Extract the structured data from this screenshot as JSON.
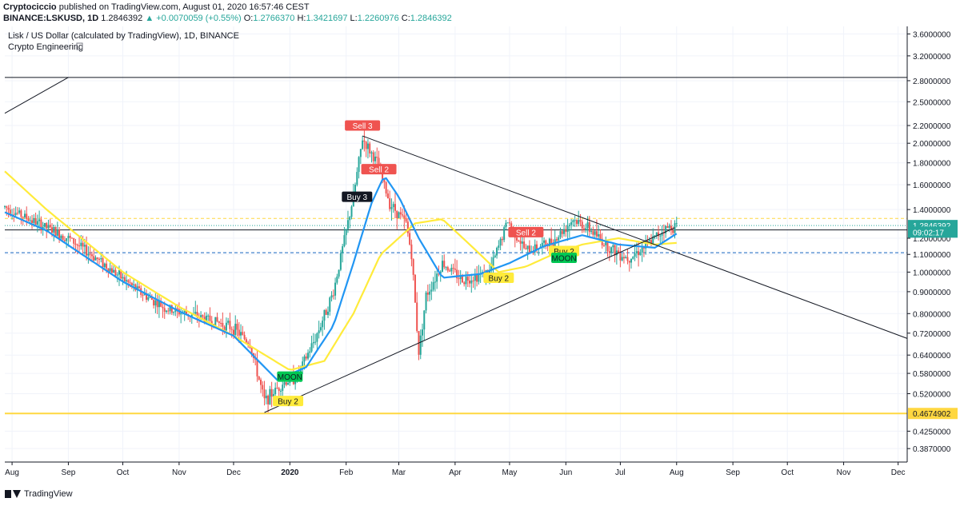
{
  "header": {
    "author": "Cryptociccio",
    "published": "published on TradingView.com, August 01, 2020 16:57:46 CEST",
    "symbol": "BINANCE:LSKUSD, 1D",
    "last": "1.2846392",
    "change": "▲ +0.0070059 (+0.55%)",
    "o_label": "O:",
    "o_value": "1.2766370",
    "h_label": "H:",
    "h_value": "1.3421697",
    "l_label": "L:",
    "l_value": "1.2260976",
    "c_label": "C:",
    "c_value": "1.2846392"
  },
  "legend": {
    "title": "Lisk / US Dollar (calculated by TradingView), 1D, BINANCE",
    "indicator": "Crypto Engineering",
    "indicator_icon": "settings-icon"
  },
  "footer": {
    "brand": "TradingView",
    "icon": "tradingview-logo-icon"
  },
  "colors": {
    "up": "#26a69a",
    "down": "#ef5350",
    "ma_fast": "#2196f3",
    "ma_slow": "#ffeb3b",
    "support": "#ffd740",
    "dashed_blue": "#1565c0",
    "dashed_yellow": "#ffd740"
  },
  "chart_data": {
    "type": "candlestick",
    "y_scale": "log",
    "ylim": [
      0.36,
      3.75
    ],
    "y_ticks": [
      "3.6000000",
      "3.2000000",
      "2.8000000",
      "2.5000000",
      "2.2000000",
      "2.0000000",
      "1.8000000",
      "1.6000000",
      "1.4000000",
      "1.2000000",
      "1.1000000",
      "1.0000000",
      "0.9000000",
      "0.8000000",
      "0.7200000",
      "0.6400000",
      "0.5800000",
      "0.5200000",
      "0.4250000",
      "0.3870000"
    ],
    "x_ticks": [
      {
        "label": "Aug",
        "date": "2019-08-01"
      },
      {
        "label": "Sep",
        "date": "2019-09-01"
      },
      {
        "label": "Oct",
        "date": "2019-10-01"
      },
      {
        "label": "Nov",
        "date": "2019-11-01"
      },
      {
        "label": "Dec",
        "date": "2019-12-01"
      },
      {
        "label": "2020",
        "date": "2020-01-01"
      },
      {
        "label": "Feb",
        "date": "2020-02-01"
      },
      {
        "label": "Mar",
        "date": "2020-03-01"
      },
      {
        "label": "Apr",
        "date": "2020-04-01"
      },
      {
        "label": "May",
        "date": "2020-05-01"
      },
      {
        "label": "Jun",
        "date": "2020-06-01"
      },
      {
        "label": "Jul",
        "date": "2020-07-01"
      },
      {
        "label": "Aug",
        "date": "2020-08-01"
      },
      {
        "label": "Sep",
        "date": "2020-09-01"
      },
      {
        "label": "Oct",
        "date": "2020-10-01"
      },
      {
        "label": "Nov",
        "date": "2020-11-01"
      },
      {
        "label": "Dec",
        "date": "2020-12-01"
      }
    ],
    "price_anchors": [
      {
        "date": "2019-07-28",
        "price": 1.42
      },
      {
        "date": "2019-08-15",
        "price": 1.3
      },
      {
        "date": "2019-09-01",
        "price": 1.2
      },
      {
        "date": "2019-09-20",
        "price": 1.05
      },
      {
        "date": "2019-10-10",
        "price": 0.9
      },
      {
        "date": "2019-10-25",
        "price": 0.82
      },
      {
        "date": "2019-11-05",
        "price": 0.8
      },
      {
        "date": "2019-11-20",
        "price": 0.77
      },
      {
        "date": "2019-12-01",
        "price": 0.74
      },
      {
        "date": "2019-12-10",
        "price": 0.68
      },
      {
        "date": "2019-12-18",
        "price": 0.5
      },
      {
        "date": "2019-12-28",
        "price": 0.55
      },
      {
        "date": "2020-01-05",
        "price": 0.57
      },
      {
        "date": "2020-01-15",
        "price": 0.7
      },
      {
        "date": "2020-01-25",
        "price": 0.9
      },
      {
        "date": "2020-02-05",
        "price": 1.5
      },
      {
        "date": "2020-02-10",
        "price": 2.05
      },
      {
        "date": "2020-02-18",
        "price": 1.8
      },
      {
        "date": "2020-02-25",
        "price": 1.45
      },
      {
        "date": "2020-03-05",
        "price": 1.3
      },
      {
        "date": "2020-03-08",
        "price": 1.1
      },
      {
        "date": "2020-03-12",
        "price": 0.65
      },
      {
        "date": "2020-03-16",
        "price": 0.88
      },
      {
        "date": "2020-03-25",
        "price": 1.05
      },
      {
        "date": "2020-04-05",
        "price": 0.96
      },
      {
        "date": "2020-04-20",
        "price": 1.0
      },
      {
        "date": "2020-04-30",
        "price": 1.32
      },
      {
        "date": "2020-05-10",
        "price": 1.12
      },
      {
        "date": "2020-05-25",
        "price": 1.18
      },
      {
        "date": "2020-06-05",
        "price": 1.33
      },
      {
        "date": "2020-06-15",
        "price": 1.25
      },
      {
        "date": "2020-06-25",
        "price": 1.14
      },
      {
        "date": "2020-07-05",
        "price": 1.08
      },
      {
        "date": "2020-07-15",
        "price": 1.15
      },
      {
        "date": "2020-07-25",
        "price": 1.26
      },
      {
        "date": "2020-08-01",
        "price": 1.2846
      }
    ],
    "ma_fast_anchors": [
      {
        "date": "2019-07-28",
        "price": 1.38
      },
      {
        "date": "2019-08-20",
        "price": 1.25
      },
      {
        "date": "2019-10-01",
        "price": 0.95
      },
      {
        "date": "2019-11-01",
        "price": 0.81
      },
      {
        "date": "2019-12-01",
        "price": 0.71
      },
      {
        "date": "2019-12-25",
        "price": 0.56
      },
      {
        "date": "2020-01-10",
        "price": 0.6
      },
      {
        "date": "2020-01-25",
        "price": 0.75
      },
      {
        "date": "2020-02-05",
        "price": 1.05
      },
      {
        "date": "2020-02-15",
        "price": 1.45
      },
      {
        "date": "2020-02-22",
        "price": 1.68
      },
      {
        "date": "2020-03-01",
        "price": 1.5
      },
      {
        "date": "2020-03-12",
        "price": 1.2
      },
      {
        "date": "2020-03-25",
        "price": 0.97
      },
      {
        "date": "2020-04-15",
        "price": 0.99
      },
      {
        "date": "2020-05-01",
        "price": 1.05
      },
      {
        "date": "2020-05-20",
        "price": 1.15
      },
      {
        "date": "2020-06-10",
        "price": 1.22
      },
      {
        "date": "2020-06-30",
        "price": 1.16
      },
      {
        "date": "2020-07-20",
        "price": 1.14
      },
      {
        "date": "2020-08-01",
        "price": 1.23
      }
    ],
    "ma_slow_anchors": [
      {
        "date": "2019-07-28",
        "price": 1.72
      },
      {
        "date": "2019-08-20",
        "price": 1.4
      },
      {
        "date": "2019-10-01",
        "price": 1.0
      },
      {
        "date": "2019-11-01",
        "price": 0.83
      },
      {
        "date": "2019-12-01",
        "price": 0.71
      },
      {
        "date": "2020-01-01",
        "price": 0.59
      },
      {
        "date": "2020-01-20",
        "price": 0.62
      },
      {
        "date": "2020-02-05",
        "price": 0.8
      },
      {
        "date": "2020-02-20",
        "price": 1.1
      },
      {
        "date": "2020-03-10",
        "price": 1.3
      },
      {
        "date": "2020-03-25",
        "price": 1.33
      },
      {
        "date": "2020-04-10",
        "price": 1.15
      },
      {
        "date": "2020-04-25",
        "price": 1.0
      },
      {
        "date": "2020-05-10",
        "price": 1.03
      },
      {
        "date": "2020-05-25",
        "price": 1.1
      },
      {
        "date": "2020-06-10",
        "price": 1.16
      },
      {
        "date": "2020-06-30",
        "price": 1.2
      },
      {
        "date": "2020-07-20",
        "price": 1.16
      },
      {
        "date": "2020-08-01",
        "price": 1.17
      }
    ],
    "h_lines": [
      {
        "name": "resistance",
        "price": 2.85,
        "color": "#131722",
        "dash": "solid"
      },
      {
        "name": "yellow-dashed",
        "price": 1.335,
        "color": "#ffd740",
        "dash": "dashed"
      },
      {
        "name": "last-price-dotted",
        "price": 1.2846392,
        "color": "#26a69a",
        "dash": "dotted"
      },
      {
        "name": "black-horizontal",
        "price": 1.255,
        "color": "#131722",
        "dash": "solid"
      },
      {
        "name": "blue-dashed",
        "price": 1.11,
        "color": "#1565c0",
        "dash": "dashed"
      },
      {
        "name": "support",
        "price": 0.4674902,
        "color": "#ffd740",
        "dash": "solid"
      }
    ],
    "trend_lines": [
      {
        "name": "top-left-trend",
        "from": {
          "date": "2019-07-28",
          "price": 2.35
        },
        "to": {
          "date": "2019-09-01",
          "price": 2.85
        }
      },
      {
        "name": "descending-trend",
        "from": {
          "date": "2020-02-10",
          "price": 2.08
        },
        "to": {
          "date": "2020-12-06",
          "price": 0.7
        }
      },
      {
        "name": "ascending-trend",
        "from": {
          "date": "2019-12-18",
          "price": 0.47
        },
        "to": {
          "date": "2020-07-31",
          "price": 1.27
        }
      }
    ],
    "signals": [
      {
        "text": "Sell 3",
        "date": "2020-02-10",
        "price": 2.2,
        "type": "sell"
      },
      {
        "text": "Sell 2",
        "date": "2020-02-19",
        "price": 1.74,
        "type": "sell"
      },
      {
        "text": "Buy 3",
        "date": "2020-02-07",
        "price": 1.5,
        "type": "buy-dark"
      },
      {
        "text": "Sell 2",
        "date": "2020-05-10",
        "price": 1.24,
        "type": "sell"
      },
      {
        "text": "Buy 2",
        "date": "2020-05-31",
        "price": 1.12,
        "type": "buy"
      },
      {
        "text": "MOON",
        "date": "2020-05-31",
        "price": 1.08,
        "type": "moon"
      },
      {
        "text": "Buy 2",
        "date": "2020-04-25",
        "price": 0.97,
        "type": "buy"
      },
      {
        "text": "MOON",
        "date": "2020-01-01",
        "price": 0.57,
        "type": "moon"
      },
      {
        "text": "Buy 2",
        "date": "2019-12-31",
        "price": 0.5,
        "type": "buy"
      }
    ],
    "price_labels": [
      {
        "text": "1.2846392",
        "price": 1.2846392,
        "bg": "#26a69a",
        "fg": "#ffffff"
      },
      {
        "text": "09:02:17",
        "price": 1.24,
        "bg": "#26a69a",
        "fg": "#ffffff"
      },
      {
        "text": "0.4674902",
        "price": 0.4674902,
        "bg": "#ffd740",
        "fg": "#131722"
      }
    ]
  }
}
